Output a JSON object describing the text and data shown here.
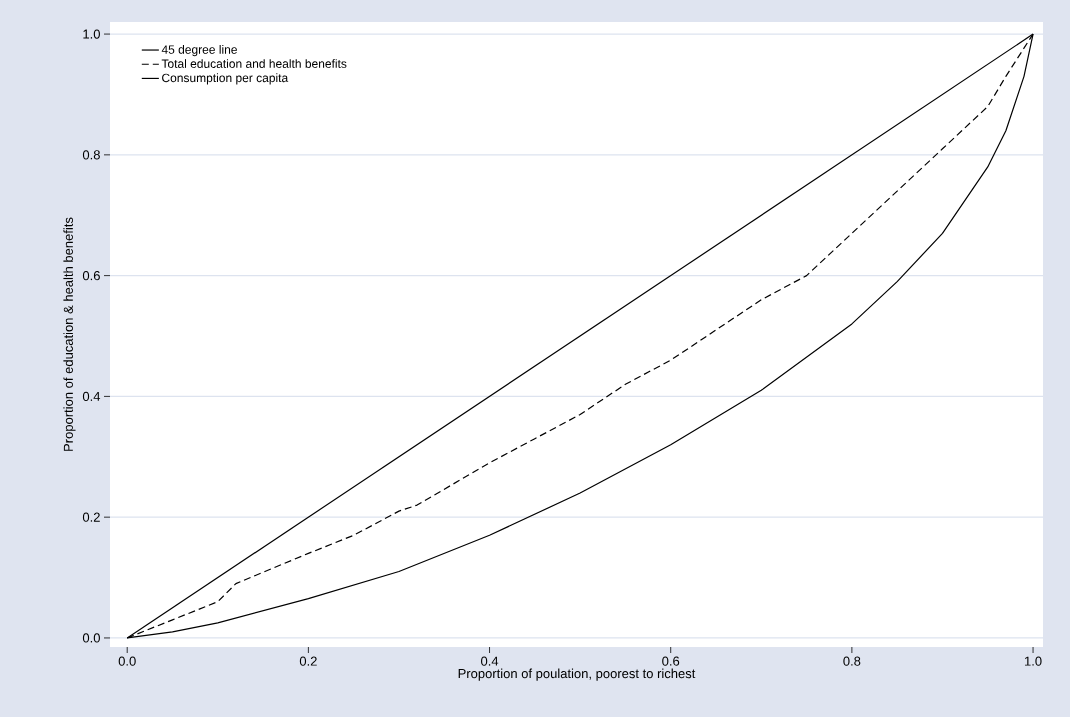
{
  "chart_data": {
    "type": "line",
    "xlabel": "Proportion of poulation, poorest to richest",
    "ylabel": "Proportion of education & health benefits",
    "xlim": [
      -0.019,
      1.011
    ],
    "ylim": [
      -0.015,
      1.02
    ],
    "xticks": [
      {
        "value": 0,
        "label": "0.0"
      },
      0.2,
      0.4,
      0.6,
      0.8,
      {
        "value": 1,
        "label": "1.0"
      }
    ],
    "yticks": [
      {
        "value": 0,
        "label": "0.0"
      },
      0.2,
      0.4,
      0.6,
      0.8,
      {
        "value": 1,
        "label": "1.0"
      }
    ],
    "grid": "y",
    "legend": "top left",
    "series": [
      {
        "name": "45 degree line",
        "color": "#000000",
        "line_style": "solid",
        "x": [
          0,
          1
        ],
        "values": [
          0,
          1
        ]
      },
      {
        "name": "Total education and health benefits",
        "color": "#000000",
        "line_style": "dashed",
        "x": [
          0,
          0.05,
          0.1,
          0.12,
          0.2,
          0.25,
          0.3,
          0.32,
          0.4,
          0.45,
          0.5,
          0.55,
          0.6,
          0.65,
          0.7,
          0.75,
          0.8,
          0.85,
          0.9,
          0.95,
          0.97,
          1
        ],
        "values": [
          0,
          0.03,
          0.06,
          0.09,
          0.14,
          0.17,
          0.21,
          0.22,
          0.29,
          0.33,
          0.37,
          0.42,
          0.46,
          0.51,
          0.56,
          0.6,
          0.67,
          0.74,
          0.81,
          0.88,
          0.93,
          1
        ]
      },
      {
        "name": "Consumption per capita",
        "color": "#000000",
        "line_style": "solid",
        "x": [
          0,
          0.05,
          0.1,
          0.2,
          0.3,
          0.4,
          0.5,
          0.6,
          0.7,
          0.8,
          0.85,
          0.9,
          0.95,
          0.97,
          0.99,
          1
        ],
        "values": [
          0,
          0.01,
          0.025,
          0.065,
          0.11,
          0.17,
          0.24,
          0.32,
          0.41,
          0.52,
          0.59,
          0.67,
          0.78,
          0.84,
          0.93,
          1
        ]
      }
    ]
  }
}
